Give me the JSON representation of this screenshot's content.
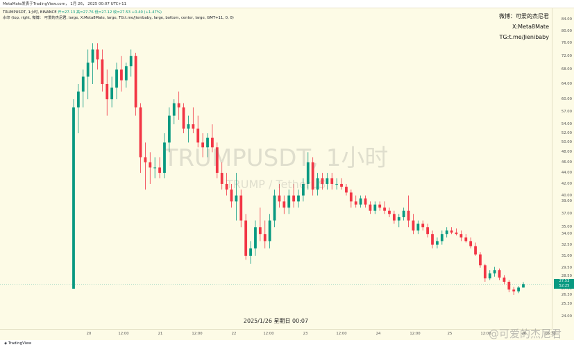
{
  "topbar": {
    "text": "MetaMate发表于TradingView.com， 1月 26， 2025 00:07 UTC+11"
  },
  "legend": {
    "symbol_line": "TRUMPUSDT, 1小时, BINANCE",
    "ohlc": "开=27.13 高=27.76 低=27.12 收=27.53 +0.40 (+1.47%)",
    "indicator_line": "水印 (top, right, 微博： 可爱的杰尼君, large, X:Meta8Mate, large, TG:t.me/Jienibaby, large, bottom, center, large, GMT+11, 0, 0)"
  },
  "social": {
    "weibo": "微博：可爱的杰尼君",
    "x": "X:Meta8Mate",
    "tg": "TG:t.me/Jienibaby"
  },
  "watermark": {
    "title": "TRUMPUSDT, 1小时",
    "subtitle": "TRUMP / TetherUS"
  },
  "date_label": "2025/1/26 星期日 00:07",
  "footer": {
    "logo_text": "TradingView",
    "corner_watermark": "@可爱的杰尼君"
  },
  "last_price": {
    "value": "27.53",
    "countdown": "52:25",
    "color": "#089981"
  },
  "colors": {
    "up": "#089981",
    "down": "#f23645",
    "background": "#fdfbe6"
  },
  "price_ticks": [
    "84.00",
    "80.00",
    "76.00",
    "72.00",
    "68.00",
    "64.00",
    "60.00",
    "57.00",
    "54.00",
    "52.00",
    "50.00",
    "48.00",
    "46.00",
    "44.00",
    "42.00",
    "40.00",
    "39.00",
    "37.00",
    "35.00",
    "34.00",
    "32.50",
    "31.00",
    "29.50",
    "28.50",
    "27.00",
    "26.30",
    "25.30",
    "24.00"
  ],
  "time_ticks": [
    "20",
    "12:00",
    "21",
    "12:00",
    "22",
    "12:00",
    "23",
    "12:00",
    "24",
    "12:00",
    "25",
    "12:00",
    "26",
    "06:30"
  ],
  "chart_data": {
    "type": "candlestick",
    "title": "TRUMPUSDT, 1小时",
    "subtitle": "TRUMP / TetherUS",
    "y_scale": "log",
    "x_start": "2025-01-19T20:00+11:00",
    "candles": [
      {
        "o": 27,
        "h": 60,
        "l": 27,
        "c": 58
      },
      {
        "o": 58,
        "h": 64,
        "l": 52,
        "c": 62
      },
      {
        "o": 62,
        "h": 68,
        "l": 58,
        "c": 66
      },
      {
        "o": 66,
        "h": 74,
        "l": 60,
        "c": 70
      },
      {
        "o": 70,
        "h": 76,
        "l": 64,
        "c": 74
      },
      {
        "o": 74,
        "h": 76,
        "l": 68,
        "c": 71
      },
      {
        "o": 71,
        "h": 74,
        "l": 62,
        "c": 64
      },
      {
        "o": 64,
        "h": 68,
        "l": 56,
        "c": 60
      },
      {
        "o": 60,
        "h": 66,
        "l": 58,
        "c": 63
      },
      {
        "o": 63,
        "h": 70,
        "l": 60,
        "c": 68
      },
      {
        "o": 68,
        "h": 72,
        "l": 62,
        "c": 65
      },
      {
        "o": 65,
        "h": 70,
        "l": 63,
        "c": 69
      },
      {
        "o": 69,
        "h": 74,
        "l": 66,
        "c": 72
      },
      {
        "o": 72,
        "h": 73,
        "l": 56,
        "c": 58
      },
      {
        "o": 58,
        "h": 59,
        "l": 44,
        "c": 47
      },
      {
        "o": 47,
        "h": 50,
        "l": 41,
        "c": 46
      },
      {
        "o": 46,
        "h": 48,
        "l": 42,
        "c": 45
      },
      {
        "o": 45,
        "h": 47,
        "l": 43,
        "c": 45
      },
      {
        "o": 45,
        "h": 47,
        "l": 43,
        "c": 44
      },
      {
        "o": 44,
        "h": 52,
        "l": 43,
        "c": 50
      },
      {
        "o": 50,
        "h": 58,
        "l": 48,
        "c": 56
      },
      {
        "o": 56,
        "h": 60,
        "l": 54,
        "c": 59
      },
      {
        "o": 59,
        "h": 62,
        "l": 55,
        "c": 58
      },
      {
        "o": 58,
        "h": 59,
        "l": 52,
        "c": 53
      },
      {
        "o": 53,
        "h": 56,
        "l": 50,
        "c": 54
      },
      {
        "o": 54,
        "h": 58,
        "l": 52,
        "c": 53
      },
      {
        "o": 53,
        "h": 56,
        "l": 49,
        "c": 50
      },
      {
        "o": 50,
        "h": 52,
        "l": 47,
        "c": 49
      },
      {
        "o": 49,
        "h": 52,
        "l": 47,
        "c": 51
      },
      {
        "o": 51,
        "h": 54,
        "l": 48,
        "c": 49
      },
      {
        "o": 49,
        "h": 50,
        "l": 43,
        "c": 44
      },
      {
        "o": 44,
        "h": 46,
        "l": 41,
        "c": 42
      },
      {
        "o": 42,
        "h": 44,
        "l": 40,
        "c": 41
      },
      {
        "o": 41,
        "h": 42,
        "l": 38,
        "c": 39
      },
      {
        "o": 39,
        "h": 44,
        "l": 36,
        "c": 40
      },
      {
        "o": 40,
        "h": 41,
        "l": 35,
        "c": 36
      },
      {
        "o": 36,
        "h": 37,
        "l": 30.5,
        "c": 31
      },
      {
        "o": 31,
        "h": 33,
        "l": 30,
        "c": 32
      },
      {
        "o": 32,
        "h": 36,
        "l": 31,
        "c": 35
      },
      {
        "o": 35,
        "h": 38,
        "l": 33,
        "c": 34
      },
      {
        "o": 34,
        "h": 36,
        "l": 32,
        "c": 33
      },
      {
        "o": 33,
        "h": 37,
        "l": 32,
        "c": 36
      },
      {
        "o": 36,
        "h": 41,
        "l": 35,
        "c": 40
      },
      {
        "o": 40,
        "h": 42,
        "l": 38,
        "c": 39
      },
      {
        "o": 39,
        "h": 40,
        "l": 37,
        "c": 38
      },
      {
        "o": 38,
        "h": 41,
        "l": 37,
        "c": 40
      },
      {
        "o": 40,
        "h": 42,
        "l": 38,
        "c": 39
      },
      {
        "o": 39,
        "h": 41,
        "l": 38,
        "c": 40
      },
      {
        "o": 40,
        "h": 43,
        "l": 39,
        "c": 42
      },
      {
        "o": 42,
        "h": 48,
        "l": 41,
        "c": 46
      },
      {
        "o": 46,
        "h": 47,
        "l": 40,
        "c": 41
      },
      {
        "o": 41,
        "h": 44,
        "l": 40,
        "c": 43
      },
      {
        "o": 43,
        "h": 44,
        "l": 41,
        "c": 42
      },
      {
        "o": 42,
        "h": 44,
        "l": 41,
        "c": 43
      },
      {
        "o": 43,
        "h": 44,
        "l": 41,
        "c": 42
      },
      {
        "o": 42,
        "h": 43,
        "l": 41,
        "c": 42
      },
      {
        "o": 42,
        "h": 43,
        "l": 41,
        "c": 41.5
      },
      {
        "o": 41.5,
        "h": 42,
        "l": 40,
        "c": 40.5
      },
      {
        "o": 40.5,
        "h": 41,
        "l": 38,
        "c": 39
      },
      {
        "o": 39,
        "h": 40,
        "l": 38,
        "c": 38.5
      },
      {
        "o": 38.5,
        "h": 40,
        "l": 38,
        "c": 39.5
      },
      {
        "o": 39.5,
        "h": 40,
        "l": 38,
        "c": 38.5
      },
      {
        "o": 38.5,
        "h": 39,
        "l": 37,
        "c": 37.5
      },
      {
        "o": 37.5,
        "h": 39,
        "l": 37,
        "c": 38.5
      },
      {
        "o": 38.5,
        "h": 39,
        "l": 37.5,
        "c": 38
      },
      {
        "o": 38,
        "h": 39,
        "l": 37,
        "c": 37.5
      },
      {
        "o": 37.5,
        "h": 38,
        "l": 36.5,
        "c": 37
      },
      {
        "o": 37,
        "h": 37.5,
        "l": 35.5,
        "c": 36
      },
      {
        "o": 36,
        "h": 37,
        "l": 35,
        "c": 36.5
      },
      {
        "o": 36.5,
        "h": 38,
        "l": 36,
        "c": 37.5
      },
      {
        "o": 37.5,
        "h": 40,
        "l": 35,
        "c": 36
      },
      {
        "o": 36,
        "h": 37,
        "l": 34,
        "c": 34.5
      },
      {
        "o": 34.5,
        "h": 36,
        "l": 34,
        "c": 35.5
      },
      {
        "o": 35.5,
        "h": 36,
        "l": 34.5,
        "c": 35
      },
      {
        "o": 35,
        "h": 35.5,
        "l": 33.5,
        "c": 34
      },
      {
        "o": 34,
        "h": 34.5,
        "l": 32,
        "c": 32.5
      },
      {
        "o": 32.5,
        "h": 33.5,
        "l": 32,
        "c": 33
      },
      {
        "o": 33,
        "h": 34.5,
        "l": 32.5,
        "c": 34
      },
      {
        "o": 34,
        "h": 35,
        "l": 33.5,
        "c": 34.5
      },
      {
        "o": 34.5,
        "h": 35,
        "l": 34,
        "c": 34.2
      },
      {
        "o": 34.2,
        "h": 34.8,
        "l": 33.8,
        "c": 34
      },
      {
        "o": 34,
        "h": 34.5,
        "l": 33,
        "c": 33.5
      },
      {
        "o": 33.5,
        "h": 34,
        "l": 32.8,
        "c": 33
      },
      {
        "o": 33,
        "h": 33.5,
        "l": 32,
        "c": 32.3
      },
      {
        "o": 32.3,
        "h": 32.8,
        "l": 31,
        "c": 31.2
      },
      {
        "o": 31.2,
        "h": 31.5,
        "l": 29.5,
        "c": 29.8
      },
      {
        "o": 29.8,
        "h": 30,
        "l": 27.8,
        "c": 28.2
      },
      {
        "o": 28.2,
        "h": 29.2,
        "l": 28,
        "c": 28.8
      },
      {
        "o": 28.8,
        "h": 29.6,
        "l": 28.4,
        "c": 29.2
      },
      {
        "o": 29.2,
        "h": 29.4,
        "l": 28,
        "c": 28.3
      },
      {
        "o": 28.3,
        "h": 28.6,
        "l": 27.5,
        "c": 27.8
      },
      {
        "o": 27.8,
        "h": 28,
        "l": 26.6,
        "c": 26.9
      },
      {
        "o": 26.9,
        "h": 27.2,
        "l": 26.3,
        "c": 26.7
      },
      {
        "o": 26.7,
        "h": 27.3,
        "l": 26.5,
        "c": 27.13
      },
      {
        "o": 27.13,
        "h": 27.76,
        "l": 27.12,
        "c": 27.53
      }
    ]
  }
}
